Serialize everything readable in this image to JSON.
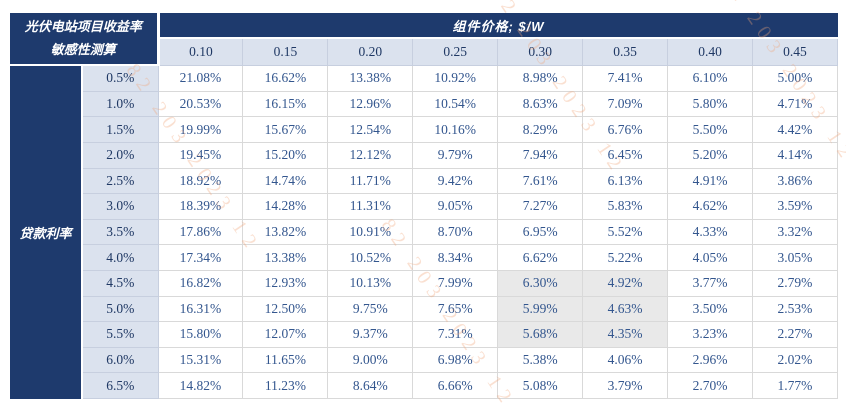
{
  "chart_data": {
    "type": "table",
    "title_line1": "光伏电站项目收益率",
    "title_line2": "敏感性测算",
    "column_group_header": "组件价格; $/W",
    "column_headers": [
      "0.10",
      "0.15",
      "0.20",
      "0.25",
      "0.30",
      "0.35",
      "0.40",
      "0.45"
    ],
    "row_group_header": "贷款利率",
    "rows": [
      {
        "label": "0.5%",
        "values": [
          "21.08%",
          "16.62%",
          "13.38%",
          "10.92%",
          "8.98%",
          "7.41%",
          "6.10%",
          "5.00%"
        ]
      },
      {
        "label": "1.0%",
        "values": [
          "20.53%",
          "16.15%",
          "12.96%",
          "10.54%",
          "8.63%",
          "7.09%",
          "5.80%",
          "4.71%"
        ]
      },
      {
        "label": "1.5%",
        "values": [
          "19.99%",
          "15.67%",
          "12.54%",
          "10.16%",
          "8.29%",
          "6.76%",
          "5.50%",
          "4.42%"
        ]
      },
      {
        "label": "2.0%",
        "values": [
          "19.45%",
          "15.20%",
          "12.12%",
          "9.79%",
          "7.94%",
          "6.45%",
          "5.20%",
          "4.14%"
        ]
      },
      {
        "label": "2.5%",
        "values": [
          "18.92%",
          "14.74%",
          "11.71%",
          "9.42%",
          "7.61%",
          "6.13%",
          "4.91%",
          "3.86%"
        ]
      },
      {
        "label": "3.0%",
        "values": [
          "18.39%",
          "14.28%",
          "11.31%",
          "9.05%",
          "7.27%",
          "5.83%",
          "4.62%",
          "3.59%"
        ]
      },
      {
        "label": "3.5%",
        "values": [
          "17.86%",
          "13.82%",
          "10.91%",
          "8.70%",
          "6.95%",
          "5.52%",
          "4.33%",
          "3.32%"
        ]
      },
      {
        "label": "4.0%",
        "values": [
          "17.34%",
          "13.38%",
          "10.52%",
          "8.34%",
          "6.62%",
          "5.22%",
          "4.05%",
          "3.05%"
        ]
      },
      {
        "label": "4.5%",
        "values": [
          "16.82%",
          "12.93%",
          "10.13%",
          "7.99%",
          "6.30%",
          "4.92%",
          "3.77%",
          "2.79%"
        ]
      },
      {
        "label": "5.0%",
        "values": [
          "16.31%",
          "12.50%",
          "9.75%",
          "7.65%",
          "5.99%",
          "4.63%",
          "3.50%",
          "2.53%"
        ]
      },
      {
        "label": "5.5%",
        "values": [
          "15.80%",
          "12.07%",
          "9.37%",
          "7.31%",
          "5.68%",
          "4.35%",
          "3.23%",
          "2.27%"
        ]
      },
      {
        "label": "6.0%",
        "values": [
          "15.31%",
          "11.65%",
          "9.00%",
          "6.98%",
          "5.38%",
          "4.06%",
          "2.96%",
          "2.02%"
        ]
      },
      {
        "label": "6.5%",
        "values": [
          "14.82%",
          "11.23%",
          "8.64%",
          "6.66%",
          "5.08%",
          "3.79%",
          "2.70%",
          "1.77%"
        ]
      }
    ],
    "highlighted_cells": {
      "row_indices": [
        8,
        9,
        10
      ],
      "col_indices": [
        4,
        5
      ]
    }
  },
  "watermark": {
    "text": "82 203 2023 12"
  },
  "colors": {
    "header_navy": "#1e3a6d",
    "header_light_blue": "#dbe2ee",
    "header_text": "#1f3864",
    "cell_text": "#33568e",
    "highlight_gray": "#e9e9e9",
    "cell_border": "#d9d9d9",
    "watermark_orange": "#f0a478"
  }
}
